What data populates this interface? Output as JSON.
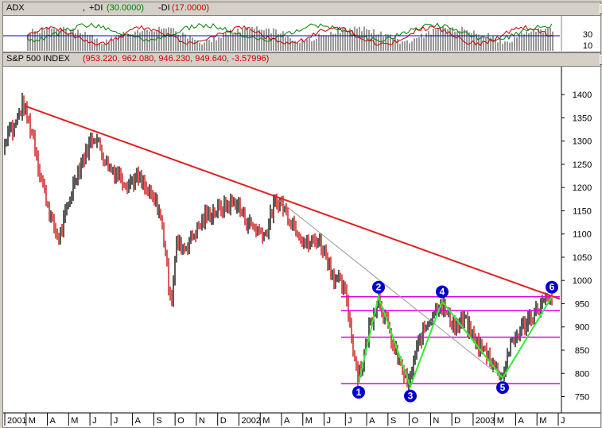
{
  "adx_pane": {
    "title": "ADX",
    "sep": ",",
    "plus_di_label": "+DI",
    "plus_di_value": "(30.0000)",
    "minus_di_label": "-DI",
    "minus_di_value": "(17.0000)",
    "window_buttons": [
      "_",
      "□",
      "×"
    ],
    "yticks": [
      "30",
      "10"
    ]
  },
  "price_pane": {
    "title": "S&P 500 INDEX",
    "values": "(953.220, 962.080, 946.230, 949.640, -3.57996)",
    "window_buttons": [
      "_",
      "□",
      "×"
    ]
  },
  "chart_data": {
    "type": "bar",
    "title": "S&P 500 INDEX",
    "ylim": [
      715,
      1460
    ],
    "yticks": [
      750,
      800,
      850,
      900,
      950,
      1000,
      1050,
      1100,
      1150,
      1200,
      1250,
      1300,
      1350,
      1400
    ],
    "xticks": [
      "2001",
      "M",
      "A",
      "M",
      "J",
      "J",
      "A",
      "S",
      "O",
      "N",
      "D",
      "2002",
      "M",
      "A",
      "M",
      "J",
      "J",
      "A",
      "S",
      "O",
      "N",
      "D",
      "2003",
      "M",
      "A",
      "M",
      "J"
    ],
    "price_path": [
      {
        "x": 0,
        "y": 1280
      },
      {
        "x": 8,
        "y": 1340
      },
      {
        "x": 12,
        "y": 1320
      },
      {
        "x": 20,
        "y": 1360
      },
      {
        "x": 25,
        "y": 1380
      },
      {
        "x": 30,
        "y": 1350
      },
      {
        "x": 38,
        "y": 1310
      },
      {
        "x": 45,
        "y": 1240
      },
      {
        "x": 55,
        "y": 1170
      },
      {
        "x": 62,
        "y": 1120
      },
      {
        "x": 70,
        "y": 1090
      },
      {
        "x": 80,
        "y": 1150
      },
      {
        "x": 90,
        "y": 1220
      },
      {
        "x": 100,
        "y": 1260
      },
      {
        "x": 110,
        "y": 1300
      },
      {
        "x": 115,
        "y": 1315
      },
      {
        "x": 125,
        "y": 1270
      },
      {
        "x": 135,
        "y": 1240
      },
      {
        "x": 145,
        "y": 1230
      },
      {
        "x": 155,
        "y": 1210
      },
      {
        "x": 170,
        "y": 1220
      },
      {
        "x": 185,
        "y": 1180
      },
      {
        "x": 195,
        "y": 1160
      },
      {
        "x": 203,
        "y": 1080
      },
      {
        "x": 208,
        "y": 990
      },
      {
        "x": 212,
        "y": 965
      },
      {
        "x": 218,
        "y": 1080
      },
      {
        "x": 228,
        "y": 1070
      },
      {
        "x": 240,
        "y": 1100
      },
      {
        "x": 255,
        "y": 1140
      },
      {
        "x": 268,
        "y": 1150
      },
      {
        "x": 280,
        "y": 1160
      },
      {
        "x": 292,
        "y": 1170
      },
      {
        "x": 305,
        "y": 1130
      },
      {
        "x": 318,
        "y": 1110
      },
      {
        "x": 330,
        "y": 1100
      },
      {
        "x": 340,
        "y": 1160
      },
      {
        "x": 348,
        "y": 1170
      },
      {
        "x": 358,
        "y": 1140
      },
      {
        "x": 370,
        "y": 1110
      },
      {
        "x": 382,
        "y": 1075
      },
      {
        "x": 395,
        "y": 1090
      },
      {
        "x": 405,
        "y": 1060
      },
      {
        "x": 415,
        "y": 1010
      },
      {
        "x": 425,
        "y": 990
      },
      {
        "x": 432,
        "y": 960
      },
      {
        "x": 438,
        "y": 880
      },
      {
        "x": 445,
        "y": 800
      },
      {
        "x": 452,
        "y": 820
      },
      {
        "x": 460,
        "y": 900
      },
      {
        "x": 472,
        "y": 965
      },
      {
        "x": 480,
        "y": 920
      },
      {
        "x": 490,
        "y": 860
      },
      {
        "x": 500,
        "y": 815
      },
      {
        "x": 510,
        "y": 775
      },
      {
        "x": 518,
        "y": 840
      },
      {
        "x": 528,
        "y": 890
      },
      {
        "x": 540,
        "y": 930
      },
      {
        "x": 550,
        "y": 955
      },
      {
        "x": 560,
        "y": 920
      },
      {
        "x": 570,
        "y": 900
      },
      {
        "x": 580,
        "y": 915
      },
      {
        "x": 590,
        "y": 880
      },
      {
        "x": 600,
        "y": 855
      },
      {
        "x": 610,
        "y": 840
      },
      {
        "x": 620,
        "y": 810
      },
      {
        "x": 628,
        "y": 795
      },
      {
        "x": 636,
        "y": 850
      },
      {
        "x": 645,
        "y": 880
      },
      {
        "x": 655,
        "y": 905
      },
      {
        "x": 665,
        "y": 925
      },
      {
        "x": 675,
        "y": 945
      },
      {
        "x": 683,
        "y": 955
      },
      {
        "x": 690,
        "y": 950
      }
    ],
    "resistance_trendline": [
      {
        "x": 28,
        "y": 1375
      },
      {
        "x": 700,
        "y": 960
      }
    ],
    "thin_trendline": [
      {
        "x": 345,
        "y": 1175
      },
      {
        "x": 628,
        "y": 790
      }
    ],
    "wave_points": [
      {
        "label": "1",
        "x": 447,
        "y": 780
      },
      {
        "label": "2",
        "x": 472,
        "y": 965
      },
      {
        "label": "3",
        "x": 512,
        "y": 772
      },
      {
        "label": "4",
        "x": 552,
        "y": 955
      },
      {
        "label": "5",
        "x": 628,
        "y": 790
      },
      {
        "label": "6",
        "x": 690,
        "y": 965
      }
    ],
    "horizontal_levels": [
      965,
      935,
      878,
      778
    ],
    "colors": {
      "up_bar": "#000000",
      "down_bar": "#cc0000",
      "trendline": "#e02020",
      "wave": "#33ee33",
      "level": "#e000e0",
      "marker": "#0000cc",
      "thin_line": "#999999"
    }
  }
}
